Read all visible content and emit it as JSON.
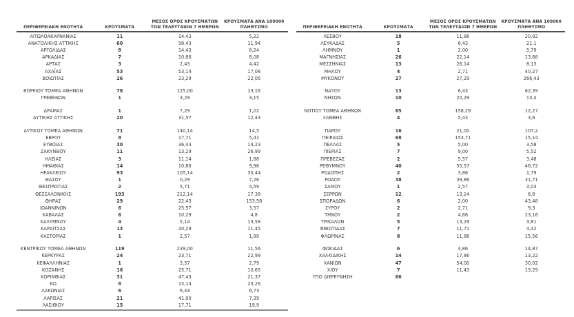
{
  "report": {
    "description": "Πίνακας κρουσμάτων ανά περιφερειακή ενότητα",
    "text_color": "#3a3a3a",
    "rule_color": "#4e4e4e"
  },
  "columns": {
    "region": "ΠΕΡΙΦΕΡΕΙΑΚΗ ΕΝΟΤΗΤΑ",
    "cases": "ΚΡΟΥΣΜΑΤΑ",
    "avg7_line1": "ΜΕΣΟΣ ΟΡΟΣ ΚΡΟΥΣΜΑΤΩΝ",
    "avg7_line2": "ΤΩΝ ΤΕΛΕΥΤΑΙΩΝ 7 ΗΜΕΡΩΝ",
    "per100k_line1": "ΚΡΟΥΣΜΑΤΑ ΑΝΑ 100000",
    "per100k_line2": "ΠΛΗΘΥΣΜΟ"
  },
  "left_table": {
    "rows": [
      {
        "region": "ΑΙΤΩΛΟΑΚΑΡΝΑΝΙΑΣ",
        "cases": "11",
        "avg": "14,43",
        "rate": "5,22"
      },
      {
        "region": "ΑΝΑΤΟΛΙΚΗΣ ΑΤΤΙΚΗΣ",
        "cases": "60",
        "avg": "98,43",
        "rate": "11,94"
      },
      {
        "region": "ΑΡΓΟΛΙΔΑΣ",
        "cases": "8",
        "avg": "14,43",
        "rate": "8,24"
      },
      {
        "region": "ΑΡΚΑΔΙΑΣ",
        "cases": "7",
        "avg": "10,86",
        "rate": "8,08"
      },
      {
        "region": "ΑΡΤΑΣ",
        "cases": "3",
        "avg": "2,43",
        "rate": "4,42"
      },
      {
        "region": "ΑΧΑΪΑΣ",
        "cases": "53",
        "avg": "53,14",
        "rate": "17,08"
      },
      {
        "region": "ΒΟΙΩΤΙΑΣ",
        "cases": "26",
        "avg": "23,29",
        "rate": "22,05"
      },
      {
        "region": "",
        "cases": "",
        "avg": "",
        "rate": ""
      },
      {
        "region": "ΒΟΡΕΙΟΥ ΤΟΜΕΑ ΑΘΗΝΩΝ",
        "cases": "78",
        "avg": "125,00",
        "rate": "13,16"
      },
      {
        "region": "ΓΡΕΒΕΝΩΝ",
        "cases": "1",
        "avg": "3,29",
        "rate": "3,15"
      },
      {
        "region": "",
        "cases": "",
        "avg": "",
        "rate": ""
      },
      {
        "region": "ΔΡΑΜΑΣ",
        "cases": "1",
        "avg": "7,29",
        "rate": "1,02"
      },
      {
        "region": "ΔΥΤΙΚΗΣ ΑΤΤΙΚΗΣ",
        "cases": "20",
        "avg": "31,57",
        "rate": "12,43"
      },
      {
        "region": "",
        "cases": "",
        "avg": "",
        "rate": ""
      },
      {
        "region": "ΔΥΤΙΚΟΥ ΤΟΜΕΑ ΑΘΗΝΩΝ",
        "cases": "71",
        "avg": "140,14",
        "rate": "14,5"
      },
      {
        "region": "ΕΒΡΟΥ",
        "cases": "8",
        "avg": "17,71",
        "rate": "5,41"
      },
      {
        "region": "ΕΥΒΟΙΑΣ",
        "cases": "30",
        "avg": "36,43",
        "rate": "14,23"
      },
      {
        "region": "ΖΑΚΥΝΘΟΥ",
        "cases": "11",
        "avg": "13,29",
        "rate": "26,99"
      },
      {
        "region": "ΗΛΕΙΑΣ",
        "cases": "3",
        "avg": "11,14",
        "rate": "1,88"
      },
      {
        "region": "ΗΜΑΘΙΑΣ",
        "cases": "14",
        "avg": "10,86",
        "rate": "9,96"
      },
      {
        "region": "ΗΡΑΚΛΕΙΟΥ",
        "cases": "93",
        "avg": "105,14",
        "rate": "30,44"
      },
      {
        "region": "ΘΑΣΟΥ",
        "cases": "1",
        "avg": "0,29",
        "rate": "7,26"
      },
      {
        "region": "ΘΕΣΠΡΩΤΙΑΣ",
        "cases": "2",
        "avg": "5,71",
        "rate": "4,59"
      },
      {
        "region": "ΘΕΣΣΑΛΟΝΙΚΗΣ",
        "cases": "193",
        "avg": "212,14",
        "rate": "17,38"
      },
      {
        "region": "ΘΗΡΑΣ",
        "cases": "29",
        "avg": "22,43",
        "rate": "153,58"
      },
      {
        "region": "ΙΩΑΝΝΙΝΩΝ",
        "cases": "6",
        "avg": "25,57",
        "rate": "3,57"
      },
      {
        "region": "ΚΑΒΑΛΑΣ",
        "cases": "6",
        "avg": "10,29",
        "rate": "4,8"
      },
      {
        "region": "ΚΑΛΥΜΝΟΥ",
        "cases": "4",
        "avg": "5,14",
        "rate": "13,58"
      },
      {
        "region": "ΚΑΡΔΙΤΣΑΣ",
        "cases": "13",
        "avg": "20,29",
        "rate": "11,45"
      },
      {
        "region": "ΚΑΣΤΟΡΙΑΣ",
        "cases": "1",
        "avg": "2,57",
        "rate": "1,99"
      },
      {
        "region": "",
        "cases": "",
        "avg": "",
        "rate": ""
      },
      {
        "region": "ΚΕΝΤΡΙΚΟΥ ΤΟΜΕΑ ΑΘΗΝΩΝ",
        "cases": "119",
        "avg": "239,00",
        "rate": "11,56"
      },
      {
        "region": "ΚΕΡΚΥΡΑΣ",
        "cases": "24",
        "avg": "23,71",
        "rate": "22,99"
      },
      {
        "region": "ΚΕΦΑΛΛΗΝΙΑΣ",
        "cases": "1",
        "avg": "3,57",
        "rate": "2,79"
      },
      {
        "region": "ΚΟΖΑΝΗΣ",
        "cases": "16",
        "avg": "25,71",
        "rate": "10,65"
      },
      {
        "region": "ΚΟΡΙΝΘΙΑΣ",
        "cases": "31",
        "avg": "47,43",
        "rate": "21,37"
      },
      {
        "region": "ΚΩ",
        "cases": "8",
        "avg": "15,14",
        "rate": "23,26"
      },
      {
        "region": "ΛΑΚΩΝΙΑΣ",
        "cases": "6",
        "avg": "6,43",
        "rate": "6,73"
      },
      {
        "region": "ΛΑΡΙΣΑΣ",
        "cases": "21",
        "avg": "41,00",
        "rate": "7,39"
      },
      {
        "region": "ΛΑΣΙΘΙΟΥ",
        "cases": "15",
        "avg": "17,71",
        "rate": "19,9"
      }
    ],
    "has_bottom_rule": true
  },
  "right_table": {
    "rows": [
      {
        "region": "ΛΕΣΒΟΥ",
        "cases": "18",
        "avg": "11,86",
        "rate": "20,82"
      },
      {
        "region": "ΛΕΥΚΑΔΑΣ",
        "cases": "5",
        "avg": "6,43",
        "rate": "21,1"
      },
      {
        "region": "ΛΗΜΝΟΥ",
        "cases": "1",
        "avg": "2,00",
        "rate": "5,79"
      },
      {
        "region": "ΜΑΓΝΗΣΙΑΣ",
        "cases": "26",
        "avg": "22,14",
        "rate": "13,68"
      },
      {
        "region": "ΜΕΣΣΗΝΙΑΣ",
        "cases": "13",
        "avg": "26,14",
        "rate": "8,13"
      },
      {
        "region": "ΜΗΛΟΥ",
        "cases": "4",
        "avg": "2,71",
        "rate": "40,27"
      },
      {
        "region": "ΜΥΚΟΝΟΥ",
        "cases": "27",
        "avg": "27,29",
        "rate": "266,43"
      },
      {
        "region": "",
        "cases": "",
        "avg": "",
        "rate": ""
      },
      {
        "region": "ΝΑΞΟΥ",
        "cases": "13",
        "avg": "6,43",
        "rate": "62,39"
      },
      {
        "region": "ΝΗΣΩΝ",
        "cases": "10",
        "avg": "20,29",
        "rate": "13,4"
      },
      {
        "region": "",
        "cases": "",
        "avg": "",
        "rate": ""
      },
      {
        "region": "ΝΟΤΙΟΥ ΤΟΜΕΑ ΑΘΗΝΩΝ",
        "cases": "65",
        "avg": "158,29",
        "rate": "12,27"
      },
      {
        "region": "ΞΑΝΘΗΣ",
        "cases": "4",
        "avg": "5,43",
        "rate": "3,6"
      },
      {
        "region": "",
        "cases": "",
        "avg": "",
        "rate": ""
      },
      {
        "region": "ΠΑΡΟΥ",
        "cases": "16",
        "avg": "21,00",
        "rate": "107,2"
      },
      {
        "region": "ΠΕΙΡΑΙΩΣ",
        "cases": "68",
        "avg": "153,71",
        "rate": "15,14"
      },
      {
        "region": "ΠΕΛΛΑΣ",
        "cases": "5",
        "avg": "5,00",
        "rate": "3,58"
      },
      {
        "region": "ΠΙΕΡΙΑΣ",
        "cases": "7",
        "avg": "9,00",
        "rate": "5,52"
      },
      {
        "region": "ΠΡΕΒΕΖΑΣ",
        "cases": "2",
        "avg": "5,57",
        "rate": "3,48"
      },
      {
        "region": "ΡΕΘΥΜΝΟΥ",
        "cases": "40",
        "avg": "55,57",
        "rate": "46,72"
      },
      {
        "region": "ΡΟΔΟΠΗΣ",
        "cases": "2",
        "avg": "3,86",
        "rate": "1,79"
      },
      {
        "region": "ΡΟΔΟΥ",
        "cases": "38",
        "avg": "39,86",
        "rate": "31,71"
      },
      {
        "region": "ΣΑΜΟΥ",
        "cases": "1",
        "avg": "2,57",
        "rate": "3,03"
      },
      {
        "region": "ΣΕΡΡΩΝ",
        "cases": "12",
        "avg": "13,14",
        "rate": "6,8"
      },
      {
        "region": "ΣΠΟΡΑΔΩΝ",
        "cases": "6",
        "avg": "2,00",
        "rate": "43,48"
      },
      {
        "region": "ΣΥΡΟΥ",
        "cases": "2",
        "avg": "2,71",
        "rate": "9,3"
      },
      {
        "region": "ΤΗΝΟΥ",
        "cases": "2",
        "avg": "4,86",
        "rate": "23,16"
      },
      {
        "region": "ΤΡΙΚΑΛΩΝ",
        "cases": "5",
        "avg": "13,29",
        "rate": "3,81"
      },
      {
        "region": "ΦΘΙΩΤΙΔΑΣ",
        "cases": "7",
        "avg": "11,71",
        "rate": "4,42"
      },
      {
        "region": "ΦΛΩΡΙΝΑΣ",
        "cases": "8",
        "avg": "11,86",
        "rate": "15,56"
      },
      {
        "region": "",
        "cases": "",
        "avg": "",
        "rate": ""
      },
      {
        "region": "ΦΩΚΙΔΑΣ",
        "cases": "6",
        "avg": "4,86",
        "rate": "14,87"
      },
      {
        "region": "ΧΑΛΚΙΔΙΚΗΣ",
        "cases": "14",
        "avg": "17,86",
        "rate": "13,22"
      },
      {
        "region": "ΧΑΝΙΩΝ",
        "cases": "47",
        "avg": "54,00",
        "rate": "30,02"
      },
      {
        "region": "ΧΙΟΥ",
        "cases": "7",
        "avg": "11,43",
        "rate": "13,29"
      },
      {
        "region": "ΥΠΟ ΔΙΕΡΕΥΝΗΣΗ",
        "cases": "66",
        "avg": "",
        "rate": ""
      }
    ],
    "has_bottom_rule": false
  }
}
